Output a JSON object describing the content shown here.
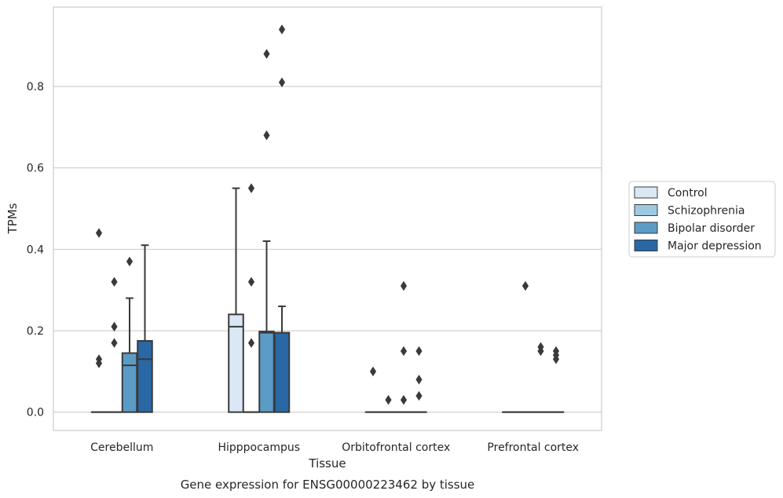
{
  "chart_data": {
    "type": "box",
    "xlabel": "Tissue",
    "ylabel": "TPMs",
    "caption": "Gene expression for ENSG00000223462 by tissue",
    "ylim": [
      -0.045,
      0.995
    ],
    "yticks": [
      "0.0",
      "0.2",
      "0.4",
      "0.6",
      "0.8"
    ],
    "grid": true,
    "legend_position": "right",
    "categories": [
      "Cerebellum",
      "Hipppocampus",
      "Orbitofrontal cortex",
      "Prefrontal cortex"
    ],
    "series": [
      {
        "name": "Control",
        "color": "#dae8f5",
        "boxes": [
          {
            "min": 0,
            "q1": 0,
            "median": 0,
            "q3": 0,
            "max": 0,
            "outliers": [
              0.13,
              0.12,
              0.44
            ]
          },
          {
            "min": 0,
            "q1": 0,
            "median": 0.21,
            "q3": 0.24,
            "max": 0.55,
            "outliers": []
          },
          {
            "min": 0,
            "q1": 0,
            "median": 0,
            "q3": 0,
            "max": 0,
            "outliers": [
              0.1
            ]
          },
          {
            "min": 0,
            "q1": 0,
            "median": 0,
            "q3": 0,
            "max": 0,
            "outliers": []
          }
        ]
      },
      {
        "name": "Schizophrenia",
        "color": "#9ec9e2",
        "boxes": [
          {
            "min": 0,
            "q1": 0,
            "median": 0,
            "q3": 0,
            "max": 0,
            "outliers": [
              0.32,
              0.21,
              0.17
            ]
          },
          {
            "min": 0,
            "q1": 0,
            "median": 0,
            "q3": 0,
            "max": 0,
            "outliers": [
              0.55,
              0.32,
              0.17
            ]
          },
          {
            "min": 0,
            "q1": 0,
            "median": 0,
            "q3": 0,
            "max": 0,
            "outliers": [
              0.03
            ]
          },
          {
            "min": 0,
            "q1": 0,
            "median": 0,
            "q3": 0,
            "max": 0,
            "outliers": [
              0.31
            ]
          }
        ]
      },
      {
        "name": "Bipolar disorder",
        "color": "#5b9cc6",
        "boxes": [
          {
            "min": 0,
            "q1": 0,
            "median": 0.115,
            "q3": 0.145,
            "max": 0.28,
            "outliers": [
              0.37
            ]
          },
          {
            "min": 0,
            "q1": 0,
            "median": 0.195,
            "q3": 0.198,
            "max": 0.42,
            "outliers": [
              0.88,
              0.68
            ]
          },
          {
            "min": 0,
            "q1": 0,
            "median": 0,
            "q3": 0,
            "max": 0,
            "outliers": [
              0.31,
              0.15,
              0.03
            ]
          },
          {
            "min": 0,
            "q1": 0,
            "median": 0,
            "q3": 0,
            "max": 0,
            "outliers": [
              0.16,
              0.15
            ]
          }
        ]
      },
      {
        "name": "Major depression",
        "color": "#2a68a5",
        "boxes": [
          {
            "min": 0,
            "q1": 0,
            "median": 0.13,
            "q3": 0.175,
            "max": 0.41,
            "outliers": []
          },
          {
            "min": 0,
            "q1": 0,
            "median": 0.195,
            "q3": 0.195,
            "max": 0.26,
            "outliers": [
              0.94,
              0.81
            ]
          },
          {
            "min": 0,
            "q1": 0,
            "median": 0,
            "q3": 0,
            "max": 0,
            "outliers": [
              0.15,
              0.08,
              0.04
            ]
          },
          {
            "min": 0,
            "q1": 0,
            "median": 0,
            "q3": 0,
            "max": 0,
            "outliers": [
              0.15,
              0.14,
              0.13
            ]
          }
        ]
      }
    ]
  }
}
